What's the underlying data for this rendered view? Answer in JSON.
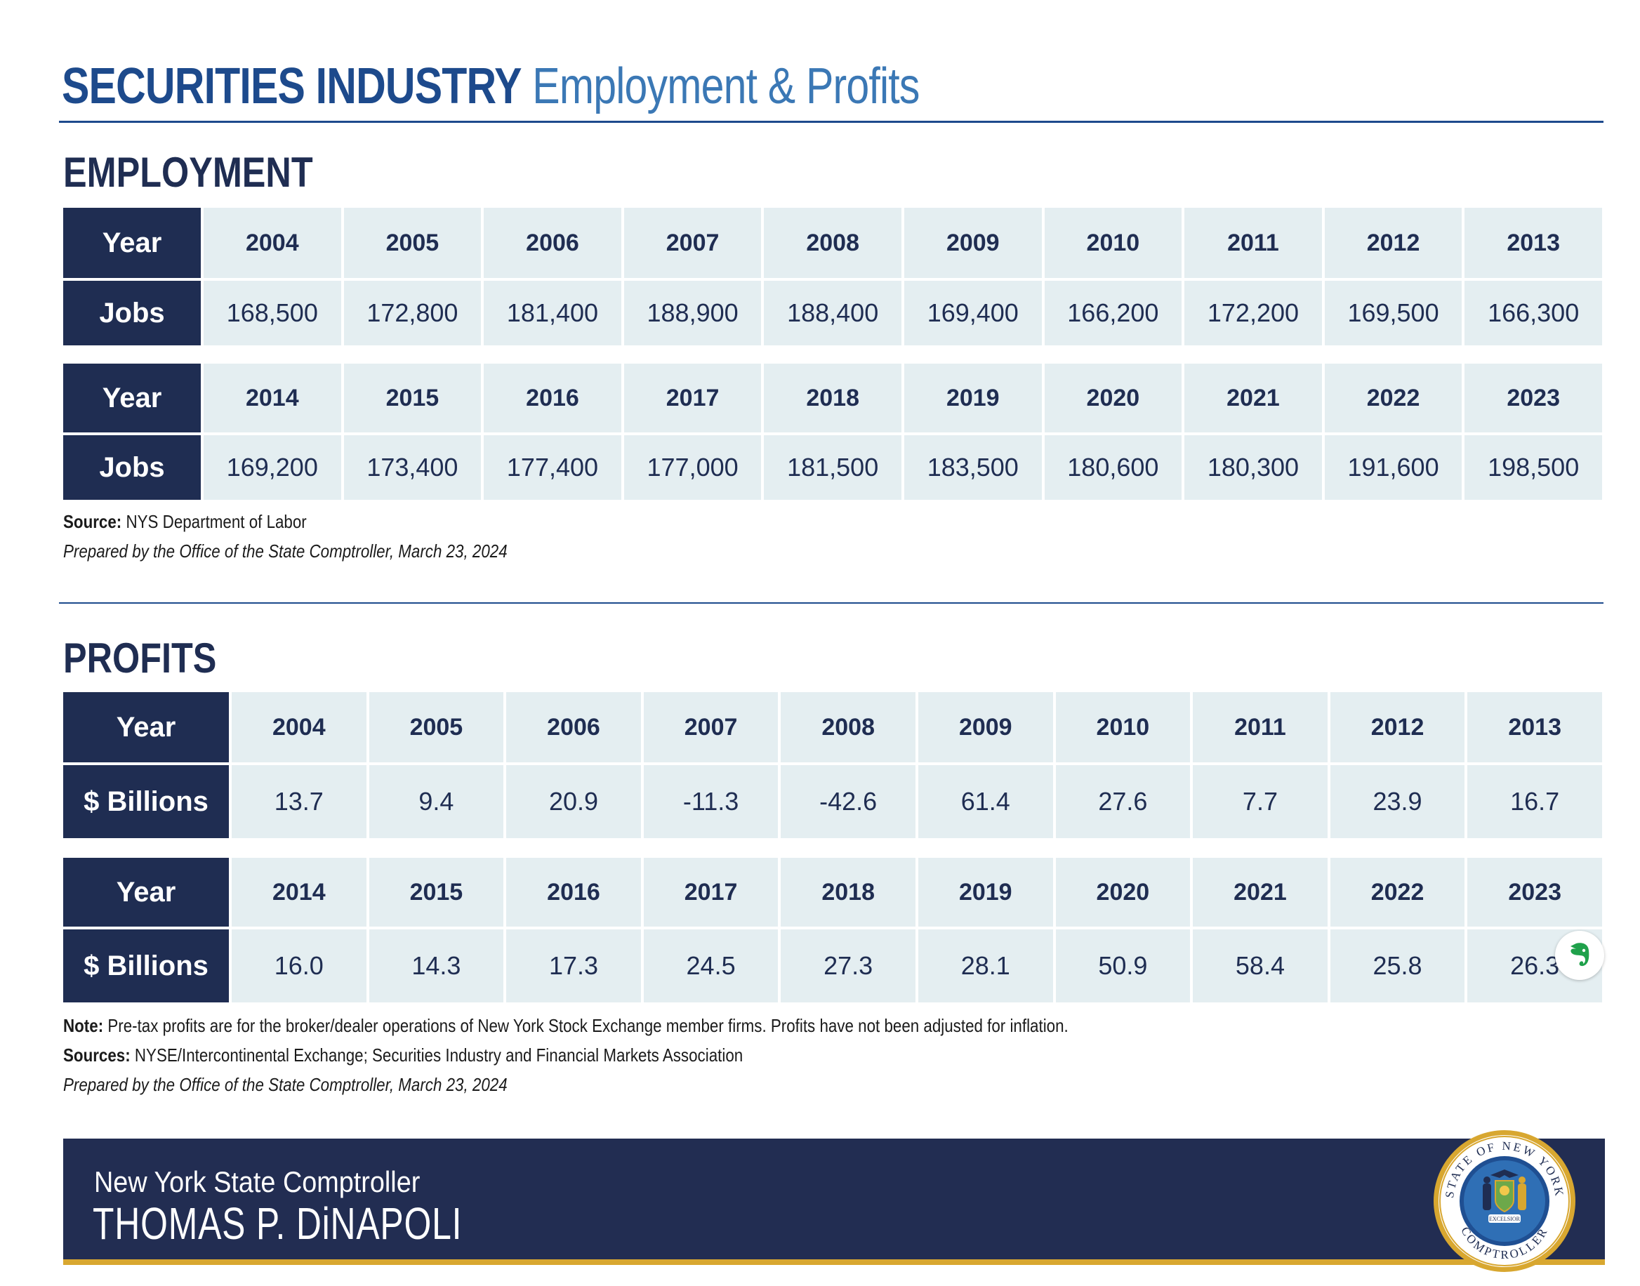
{
  "header": {
    "title_bold": "SECURITIES INDUSTRY",
    "title_light": "Employment & Profits"
  },
  "employment": {
    "heading": "EMPLOYMENT",
    "year_label": "Year",
    "row_label": "Jobs",
    "table1": {
      "years": [
        "2004",
        "2005",
        "2006",
        "2007",
        "2008",
        "2009",
        "2010",
        "2011",
        "2012",
        "2013"
      ],
      "values": [
        "168,500",
        "172,800",
        "181,400",
        "188,900",
        "188,400",
        "169,400",
        "166,200",
        "172,200",
        "169,500",
        "166,300"
      ]
    },
    "table2": {
      "years": [
        "2014",
        "2015",
        "2016",
        "2017",
        "2018",
        "2019",
        "2020",
        "2021",
        "2022",
        "2023"
      ],
      "values": [
        "169,200",
        "173,400",
        "177,400",
        "177,000",
        "181,500",
        "183,500",
        "180,600",
        "180,300",
        "191,600",
        "198,500"
      ]
    },
    "source_label": "Source:",
    "source_text": "NYS Department of Labor",
    "prepared": "Prepared by the Office of the State Comptroller, March 23, 2024"
  },
  "profits": {
    "heading": "PROFITS",
    "year_label": "Year",
    "row_label": "$ Billions",
    "table1": {
      "years": [
        "2004",
        "2005",
        "2006",
        "2007",
        "2008",
        "2009",
        "2010",
        "2011",
        "2012",
        "2013"
      ],
      "values": [
        "13.7",
        "9.4",
        "20.9",
        "-11.3",
        "-42.6",
        "61.4",
        "27.6",
        "7.7",
        "23.9",
        "16.7"
      ]
    },
    "table2": {
      "years": [
        "2014",
        "2015",
        "2016",
        "2017",
        "2018",
        "2019",
        "2020",
        "2021",
        "2022",
        "2023"
      ],
      "values": [
        "16.0",
        "14.3",
        "17.3",
        "24.5",
        "27.3",
        "28.1",
        "50.9",
        "58.4",
        "25.8",
        "26.3"
      ]
    },
    "note_label": "Note:",
    "note_text": "Pre-tax profits are for the broker/dealer operations of New York Stock Exchange member firms. Profits have not been adjusted for inflation.",
    "sources_label": "Sources:",
    "sources_text": "NYSE/Intercontinental Exchange; Securities Industry and Financial Markets Association",
    "prepared": "Prepared by the Office of the State Comptroller, March 23, 2024"
  },
  "footer": {
    "title": "New York State Comptroller",
    "name": "THOMAS P. DiNAPOLI",
    "seal_text_top": "STATE OF NEW YORK",
    "seal_text_bottom": "COMPTROLLER",
    "seal_motto": "EXCELSIOR"
  },
  "colors": {
    "navy": "#1f2d52",
    "title_blue": "#1d4a8c",
    "light_blue": "#3b78b5",
    "cell_bg": "#e4eef1",
    "gold": "#d8a730"
  }
}
